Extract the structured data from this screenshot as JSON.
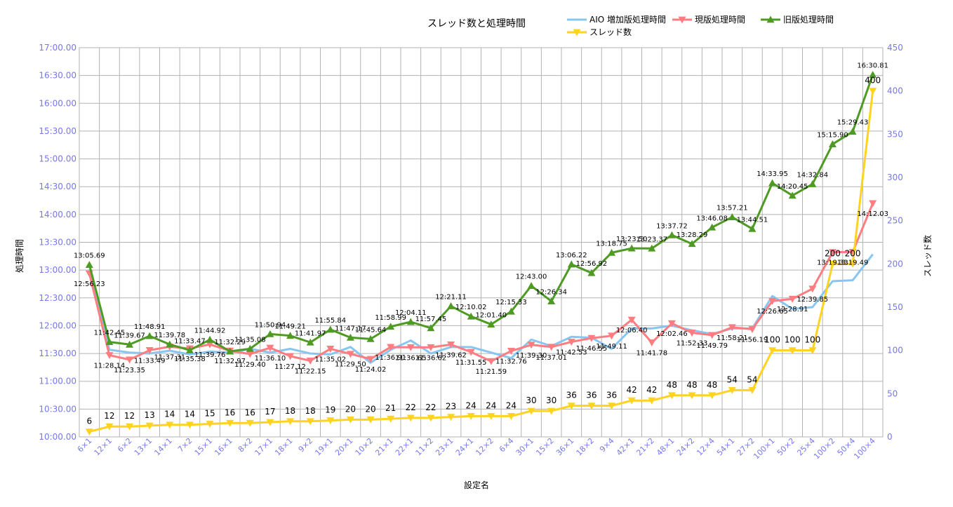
{
  "chart_data": {
    "type": "line",
    "title": "スレッド数と処理時間",
    "xlabel": "設定名",
    "ylabel": "処理時間",
    "y2label": "スレッド数",
    "grid": true,
    "legend_position": "top-right",
    "categories": [
      "6×1",
      "12×1",
      "6×2",
      "13×1",
      "14×1",
      "7×2",
      "15×1",
      "16×1",
      "8×2",
      "17×1",
      "18×1",
      "9×2",
      "19×1",
      "20×1",
      "10×2",
      "21×1",
      "22×1",
      "11×2",
      "23×1",
      "24×1",
      "12×2",
      "6×4",
      "30×1",
      "15×2",
      "36×1",
      "18×2",
      "9×4",
      "42×1",
      "21×2",
      "48×1",
      "24×2",
      "12×4",
      "54×1",
      "27×2",
      "100×1",
      "50×2",
      "25×4",
      "100×2",
      "50×4",
      "100×4"
    ],
    "y_left": {
      "min": "10:00.00",
      "max": "17:00.00",
      "ticks": [
        "10:00.00",
        "10:30.00",
        "11:00.00",
        "11:30.00",
        "12:00.00",
        "12:30.00",
        "13:00.00",
        "13:30.00",
        "14:00.00",
        "14:30.00",
        "15:00.00",
        "15:30.00",
        "16:00.00",
        "16:30.00",
        "17:00.00"
      ]
    },
    "y_right": {
      "min": 0,
      "max": 450,
      "ticks": [
        "0",
        "50",
        "100",
        "150",
        "200",
        "250",
        "300",
        "350",
        "400",
        "450"
      ]
    },
    "series": [
      {
        "name": "AIO 増加版処理時間",
        "axis": "left",
        "color": "#87c6f0",
        "marker": "none",
        "values": [
          "13:01.00",
          "11:34.00",
          "11:31.00",
          "11:30.00",
          "11:33.00",
          "11:29.00",
          "11:32.00",
          "11:31.00",
          "11:35.00",
          "11:31.00",
          "11:35.00",
          "11:30.00",
          "11:29.00",
          "11:37.00",
          "11:20.00",
          "11:34.00",
          "11:44.00",
          "11:30.00",
          "11:37.00",
          "11:37.00",
          "11:31.00",
          "11:25.00",
          "11:45.00",
          "11:38.00",
          "11:48.00",
          "11:47.00",
          "11:35.00",
          "11:57.00",
          "11:57.00",
          "12:00.00",
          "11:55.00",
          "11:51.00",
          "11:57.00",
          "11:57.00",
          "12:32.00",
          "12:18.00",
          "12:20.00",
          "12:48.00",
          "12:49.00",
          "13:17.00"
        ],
        "labels": []
      },
      {
        "name": "現版処理時間",
        "axis": "left",
        "color": "#ff7c80",
        "marker": "triangle-down",
        "values": [
          "12:56.23",
          "11:28.14",
          "11:23.35",
          "11:33.49",
          "11:37.31",
          "11:35.38",
          "11:39.76",
          "11:32.97",
          "11:29.40",
          "11:36.10",
          "11:27.12",
          "11:22.15",
          "11:35.02",
          "11:29.50",
          "11:24.02",
          "11:36.91",
          "11:36.65",
          "11:36.62",
          "11:39.62",
          "11:31.55",
          "11:21.59",
          "11:32.76",
          "11:39.30",
          "11:37.01",
          "11:42.53",
          "11:46.55",
          "11:49.11",
          "12:06.40",
          "11:41.78",
          "12:02.46",
          "11:52.33",
          "11:49.79",
          "11:58.21",
          "11:56.19",
          "12:26.65",
          "12:28.91",
          "12:39.85",
          "13:19.33",
          "13:19.49",
          "14:12.03"
        ],
        "labels": [
          "12:56.23",
          "11:28.14",
          "11:23.35",
          "11:33.49",
          "11:37.31",
          "11:35.38",
          "11:39.76",
          "11:32.97",
          "11:29.40",
          "11:36.10",
          "11:27.12",
          "11:22.15",
          "11:35.02",
          "11:29.50",
          "11:24.02",
          "11:36.91",
          "11:36.65",
          "11:36.62",
          "11:39.62",
          "11:31.55",
          "11:21.59",
          "11:32.76",
          "11:39.30",
          "11:37.01",
          "11:42.53",
          "11:46.55",
          "11:49.11",
          "12:06.40",
          "11:41.78",
          "12:02.46",
          "11:52.33",
          "11:49.79",
          "11:58.21",
          "11:56.19",
          "12:26.65",
          "12:28.91",
          "12:39.85",
          "13:19.33",
          "13:19.49",
          "14:12.03"
        ]
      },
      {
        "name": "旧版処理時間",
        "axis": "left",
        "color": "#4e9a23",
        "marker": "triangle-up",
        "values": [
          "13:05.69",
          "11:42.45",
          "11:39.67",
          "11:48.91",
          "11:39.78",
          "11:33.47",
          "11:44.92",
          "11:32.29",
          "11:35.08",
          "11:50.94",
          "11:49.21",
          "11:41.97",
          "11:55.84",
          "11:47.17",
          "11:45.64",
          "11:58.99",
          "12:04.11",
          "11:57.45",
          "12:21.11",
          "12:10.02",
          "12:01.40",
          "12:15.33",
          "12:43.00",
          "12:26.34",
          "13:06.22",
          "12:56.92",
          "13:18.75",
          "13:23.50",
          "13:23.37",
          "13:37.72",
          "13:28.29",
          "13:46.08",
          "13:57.21",
          "13:44.51",
          "14:33.95",
          "14:20.45",
          "14:32.84",
          "15:15.90",
          "15:29.43",
          "16:30.81"
        ],
        "labels": [
          "13:05.69",
          "11:42.45",
          "11:39.67",
          "11:48.91",
          "11:39.78",
          "11:33.47",
          "11:44.92",
          "11:32.29",
          "11:35.08",
          "11:50.94",
          "11:49.21",
          "11:41.97",
          "11:55.84",
          "11:47.17",
          "11:45.64",
          "11:58.99",
          "12:04.11",
          "11:57.45",
          "12:21.11",
          "12:10.02",
          "12:01.40",
          "12:15.33",
          "12:43.00",
          "12:26.34",
          "13:06.22",
          "12:56.92",
          "13:18.75",
          "13:23.50",
          "13:23.37",
          "13:37.72",
          "13:28.29",
          "13:46.08",
          "13:57.21",
          "13:44.51",
          "14:33.95",
          "14:20.45",
          "14:32.84",
          "15:15.90",
          "15:29.43",
          "16:30.81"
        ]
      },
      {
        "name": "スレッド数",
        "axis": "right",
        "color": "#ffd320",
        "marker": "triangle-down",
        "values": [
          6,
          12,
          12,
          13,
          14,
          14,
          15,
          16,
          16,
          17,
          18,
          18,
          19,
          20,
          20,
          21,
          22,
          22,
          23,
          24,
          24,
          24,
          30,
          30,
          36,
          36,
          36,
          42,
          42,
          48,
          48,
          48,
          54,
          54,
          100,
          100,
          100,
          200,
          200,
          400
        ],
        "labels": [
          "6",
          "12",
          "12",
          "13",
          "14",
          "14",
          "15",
          "16",
          "16",
          "17",
          "18",
          "18",
          "19",
          "20",
          "20",
          "21",
          "22",
          "22",
          "23",
          "24",
          "24",
          "24",
          "30",
          "30",
          "36",
          "36",
          "36",
          "42",
          "42",
          "48",
          "48",
          "48",
          "54",
          "54",
          "100",
          "100",
          "100",
          "200",
          "200",
          "400"
        ]
      }
    ]
  }
}
